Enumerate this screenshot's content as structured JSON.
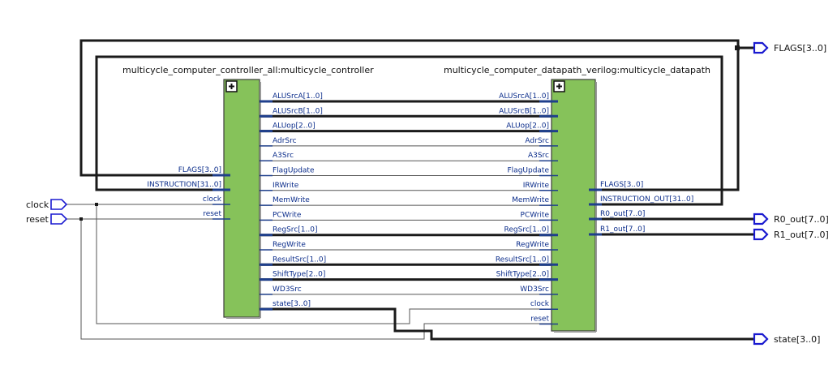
{
  "controller": {
    "title": "multicycle_computer_controller_all:multicycle_controller",
    "inputs": [
      "FLAGS[3..0]",
      "INSTRUCTION[31..0]",
      "clock",
      "reset"
    ],
    "outputs": [
      "ALUSrcA[1..0]",
      "ALUSrcB[1..0]",
      "ALUop[2..0]",
      "AdrSrc",
      "A3Src",
      "FlagUpdate",
      "IRWrite",
      "MemWrite",
      "PCWrite",
      "RegSrc[1..0]",
      "RegWrite",
      "ResultSrc[1..0]",
      "ShiftType[2..0]",
      "WD3Src",
      "state[3..0]"
    ]
  },
  "datapath": {
    "title": "multicycle_computer_datapath_verilog:multicycle_datapath",
    "inputs": [
      "ALUSrcA[1..0]",
      "ALUSrcB[1..0]",
      "ALUop[2..0]",
      "AdrSrc",
      "A3Src",
      "FlagUpdate",
      "IRWrite",
      "MemWrite",
      "PCWrite",
      "RegSrc[1..0]",
      "RegWrite",
      "ResultSrc[1..0]",
      "ShiftType[2..0]",
      "WD3Src",
      "clock",
      "reset"
    ],
    "outputs": [
      "FLAGS[3..0]",
      "INSTRUCTION_OUT[31..0]",
      "R0_out[7..0]",
      "R1_out[7..0]"
    ]
  },
  "ports": {
    "clock": "clock",
    "reset": "reset",
    "flags": "FLAGS[3..0]",
    "r0": "R0_out[7..0]",
    "r1": "R1_out[7..0]",
    "state": "state[3..0]"
  },
  "colors": {
    "block_fill": "#86c25a",
    "block_border": "#3c3c3c",
    "pin_label": "#0a2c8a",
    "bus_wire": "#1a1a1a",
    "port_outline": "#1a1ad0"
  }
}
